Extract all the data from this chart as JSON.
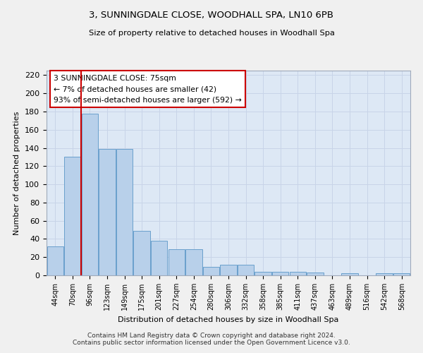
{
  "title": "3, SUNNINGDALE CLOSE, WOODHALL SPA, LN10 6PB",
  "subtitle": "Size of property relative to detached houses in Woodhall Spa",
  "xlabel": "Distribution of detached houses by size in Woodhall Spa",
  "ylabel": "Number of detached properties",
  "categories": [
    "44sqm",
    "70sqm",
    "96sqm",
    "123sqm",
    "149sqm",
    "175sqm",
    "201sqm",
    "227sqm",
    "254sqm",
    "280sqm",
    "306sqm",
    "332sqm",
    "358sqm",
    "385sqm",
    "411sqm",
    "437sqm",
    "463sqm",
    "489sqm",
    "516sqm",
    "542sqm",
    "568sqm"
  ],
  "values": [
    32,
    130,
    178,
    139,
    139,
    49,
    38,
    29,
    29,
    9,
    12,
    12,
    4,
    4,
    4,
    3,
    0,
    2,
    0,
    2,
    2
  ],
  "bar_color": "#b8d0ea",
  "bar_edge_color": "#6aa0cc",
  "red_line_x": 1.5,
  "annotation_title": "3 SUNNINGDALE CLOSE: 75sqm",
  "annotation_line1": "← 7% of detached houses are smaller (42)",
  "annotation_line2": "93% of semi-detached houses are larger (592) →",
  "annotation_box_color": "#ffffff",
  "annotation_box_edge": "#cc0000",
  "red_line_color": "#cc0000",
  "ylim": [
    0,
    225
  ],
  "yticks": [
    0,
    20,
    40,
    60,
    80,
    100,
    120,
    140,
    160,
    180,
    200,
    220
  ],
  "grid_color": "#c8d4e8",
  "background_color": "#dde8f5",
  "fig_background": "#f0f0f0",
  "footer": "Contains HM Land Registry data © Crown copyright and database right 2024.\nContains public sector information licensed under the Open Government Licence v3.0."
}
